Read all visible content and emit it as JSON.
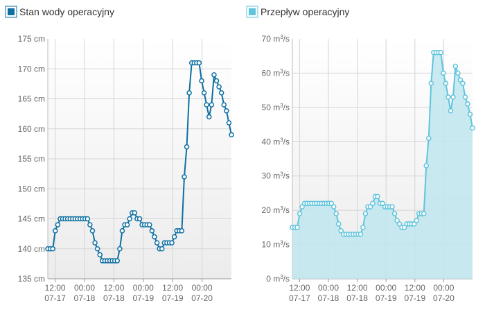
{
  "chart_data": [
    {
      "type": "line",
      "legend_label": "Stan wody operacyjny",
      "legend_placement": "top-left",
      "color": "#0d6fa2",
      "y_unit": "cm",
      "ylim": [
        135,
        175
      ],
      "y_ticks": [
        "135 cm",
        "140 cm",
        "145 cm",
        "150 cm",
        "155 cm",
        "160 cm",
        "165 cm",
        "170 cm",
        "175 cm"
      ],
      "x_ticks": [
        {
          "time": "12:00",
          "date": "07-17"
        },
        {
          "time": "00:00",
          "date": "07-18"
        },
        {
          "time": "12:00",
          "date": "07-18"
        },
        {
          "time": "00:00",
          "date": "07-19"
        },
        {
          "time": "12:00",
          "date": "07-19"
        },
        {
          "time": "00:00",
          "date": "07-20"
        }
      ],
      "x_start": "2020-07-17 09:00",
      "x_end": "2020-07-20 12:00",
      "grid": true,
      "values": [
        140,
        140,
        140,
        143,
        144,
        145,
        145,
        145,
        145,
        145,
        145,
        145,
        145,
        145,
        145,
        145,
        145,
        144,
        143,
        141,
        140,
        139,
        138,
        138,
        138,
        138,
        138,
        138,
        138,
        140,
        143,
        144,
        144,
        145,
        146,
        146,
        145,
        145,
        144,
        144,
        144,
        144,
        143,
        142,
        141,
        140,
        140,
        141,
        141,
        141,
        141,
        142,
        143,
        143,
        143,
        152,
        157,
        166,
        171,
        171,
        171,
        171,
        168,
        166,
        164,
        162,
        164,
        169,
        168,
        167,
        166,
        164,
        163,
        161,
        159
      ]
    },
    {
      "type": "area",
      "legend_label": "Przepływ operacyjny",
      "legend_placement": "top-left",
      "color": "#5fc4dc",
      "fill": "#bfe6ef",
      "y_unit": "m³/s",
      "ylim": [
        0,
        70
      ],
      "y_ticks": [
        "0 m³/s",
        "10 m³/s",
        "20 m³/s",
        "30 m³/s",
        "40 m³/s",
        "50 m³/s",
        "60 m³/s",
        "70 m³/s"
      ],
      "x_ticks": [
        {
          "time": "12:00",
          "date": "07-17"
        },
        {
          "time": "00:00",
          "date": "07-18"
        },
        {
          "time": "12:00",
          "date": "07-18"
        },
        {
          "time": "00:00",
          "date": "07-19"
        },
        {
          "time": "12:00",
          "date": "07-19"
        },
        {
          "time": "00:00",
          "date": "07-20"
        }
      ],
      "x_start": "2020-07-17 09:00",
      "x_end": "2020-07-20 12:00",
      "grid": true,
      "values": [
        15,
        15,
        15,
        19,
        21,
        22,
        22,
        22,
        22,
        22,
        22,
        22,
        22,
        22,
        22,
        22,
        22,
        21,
        19,
        16,
        14,
        13,
        13,
        13,
        13,
        13,
        13,
        13,
        13,
        15,
        19,
        21,
        21,
        22,
        24,
        24,
        22,
        22,
        21,
        21,
        21,
        21,
        19,
        17,
        16,
        15,
        15,
        16,
        16,
        16,
        16,
        17,
        19,
        19,
        19,
        33,
        41,
        57,
        66,
        66,
        66,
        66,
        60,
        57,
        53,
        49,
        53,
        62,
        60,
        58,
        57,
        53,
        51,
        48,
        44
      ]
    }
  ]
}
